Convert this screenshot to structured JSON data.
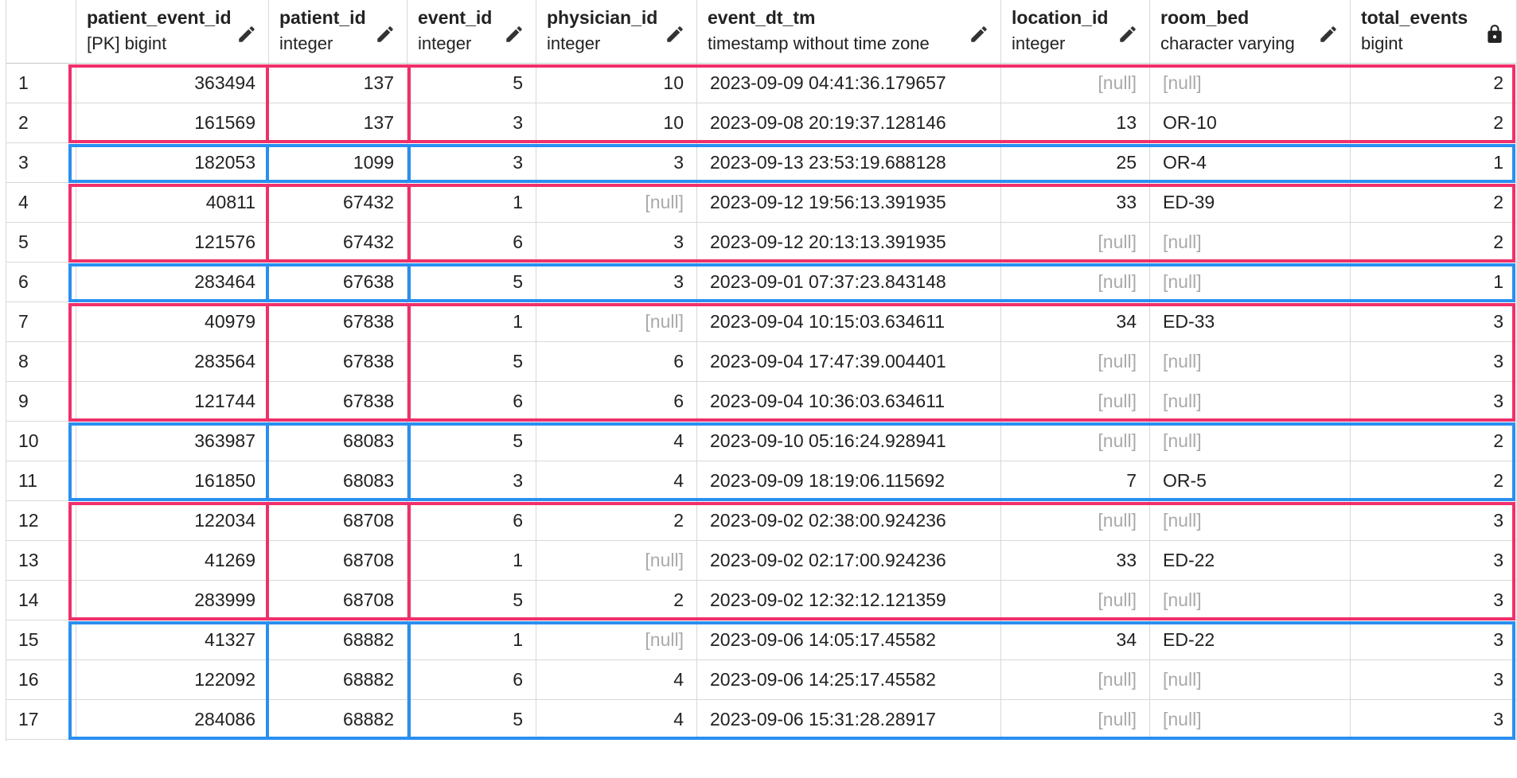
{
  "columns": [
    {
      "name": "patient_event_id",
      "type": "[PK] bigint",
      "icon": "pencil-icon",
      "align": "num"
    },
    {
      "name": "patient_id",
      "type": "integer",
      "icon": "pencil-icon",
      "align": "num"
    },
    {
      "name": "event_id",
      "type": "integer",
      "icon": "pencil-icon",
      "align": "num"
    },
    {
      "name": "physician_id",
      "type": "integer",
      "icon": "pencil-icon",
      "align": "num"
    },
    {
      "name": "event_dt_tm",
      "type": "timestamp without time zone",
      "icon": "pencil-icon",
      "align": "txt"
    },
    {
      "name": "location_id",
      "type": "integer",
      "icon": "pencil-icon",
      "align": "num"
    },
    {
      "name": "room_bed",
      "type": "character varying",
      "icon": "pencil-icon",
      "align": "txt"
    },
    {
      "name": "total_events",
      "type": "bigint",
      "icon": "lock-icon",
      "align": "num"
    }
  ],
  "rows": [
    {
      "n": "1",
      "cells": [
        "363494",
        "137",
        "5",
        "10",
        "2023-09-09 04:41:36.179657",
        "[null]",
        "[null]",
        "2"
      ]
    },
    {
      "n": "2",
      "cells": [
        "161569",
        "137",
        "3",
        "10",
        "2023-09-08 20:19:37.128146",
        "13",
        "OR-10",
        "2"
      ]
    },
    {
      "n": "3",
      "cells": [
        "182053",
        "1099",
        "3",
        "3",
        "2023-09-13 23:53:19.688128",
        "25",
        "OR-4",
        "1"
      ]
    },
    {
      "n": "4",
      "cells": [
        "40811",
        "67432",
        "1",
        "[null]",
        "2023-09-12 19:56:13.391935",
        "33",
        "ED-39",
        "2"
      ]
    },
    {
      "n": "5",
      "cells": [
        "121576",
        "67432",
        "6",
        "3",
        "2023-09-12 20:13:13.391935",
        "[null]",
        "[null]",
        "2"
      ]
    },
    {
      "n": "6",
      "cells": [
        "283464",
        "67638",
        "5",
        "3",
        "2023-09-01 07:37:23.843148",
        "[null]",
        "[null]",
        "1"
      ]
    },
    {
      "n": "7",
      "cells": [
        "40979",
        "67838",
        "1",
        "[null]",
        "2023-09-04 10:15:03.634611",
        "34",
        "ED-33",
        "3"
      ]
    },
    {
      "n": "8",
      "cells": [
        "283564",
        "67838",
        "5",
        "6",
        "2023-09-04 17:47:39.004401",
        "[null]",
        "[null]",
        "3"
      ]
    },
    {
      "n": "9",
      "cells": [
        "121744",
        "67838",
        "6",
        "6",
        "2023-09-04 10:36:03.634611",
        "[null]",
        "[null]",
        "3"
      ]
    },
    {
      "n": "10",
      "cells": [
        "363987",
        "68083",
        "5",
        "4",
        "2023-09-10 05:16:24.928941",
        "[null]",
        "[null]",
        "2"
      ]
    },
    {
      "n": "11",
      "cells": [
        "161850",
        "68083",
        "3",
        "4",
        "2023-09-09 18:19:06.115692",
        "7",
        "OR-5",
        "2"
      ]
    },
    {
      "n": "12",
      "cells": [
        "122034",
        "68708",
        "6",
        "2",
        "2023-09-02 02:38:00.924236",
        "[null]",
        "[null]",
        "3"
      ]
    },
    {
      "n": "13",
      "cells": [
        "41269",
        "68708",
        "1",
        "[null]",
        "2023-09-02 02:17:00.924236",
        "33",
        "ED-22",
        "3"
      ]
    },
    {
      "n": "14",
      "cells": [
        "283999",
        "68708",
        "5",
        "2",
        "2023-09-02 12:32:12.121359",
        "[null]",
        "[null]",
        "3"
      ]
    },
    {
      "n": "15",
      "cells": [
        "41327",
        "68882",
        "1",
        "[null]",
        "2023-09-06 14:05:17.45582",
        "34",
        "ED-22",
        "3"
      ]
    },
    {
      "n": "16",
      "cells": [
        "122092",
        "68882",
        "6",
        "4",
        "2023-09-06 14:25:17.45582",
        "[null]",
        "[null]",
        "3"
      ]
    },
    {
      "n": "17",
      "cells": [
        "284086",
        "68882",
        "5",
        "4",
        "2023-09-06 15:31:28.28917",
        "[null]",
        "[null]",
        "3"
      ]
    }
  ],
  "null_text": "[null]",
  "highlight_groups": [
    {
      "rows": [
        1,
        2
      ],
      "color": "#f0306a"
    },
    {
      "rows": [
        3
      ],
      "color": "#2a8ff0"
    },
    {
      "rows": [
        4,
        5
      ],
      "color": "#f0306a"
    },
    {
      "rows": [
        6
      ],
      "color": "#2a8ff0"
    },
    {
      "rows": [
        7,
        8,
        9
      ],
      "color": "#f0306a"
    },
    {
      "rows": [
        10,
        11
      ],
      "color": "#2a8ff0"
    },
    {
      "rows": [
        12,
        13,
        14
      ],
      "color": "#f0306a"
    },
    {
      "rows": [
        15,
        16,
        17
      ],
      "color": "#2a8ff0"
    }
  ],
  "colors": {
    "null_text": "#aaaaaa",
    "grid_line": "#d8d8d8",
    "pink": "#f0306a",
    "blue": "#2a8ff0"
  }
}
